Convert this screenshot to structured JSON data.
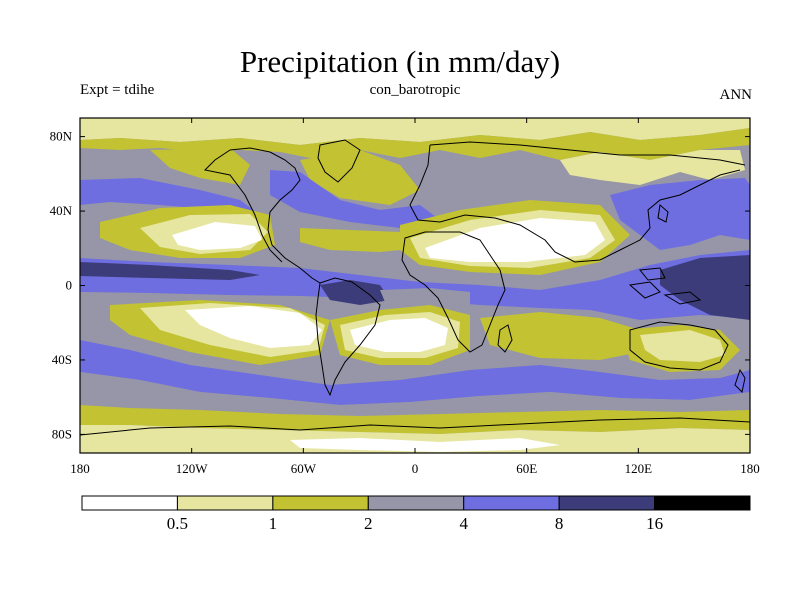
{
  "title": "Precipitation (in mm/day)",
  "left_subtitle": "Expt = tdihe",
  "center_subtitle": "con_barotropic",
  "right_subtitle": "ANN",
  "x_ticks": [
    "180",
    "120W",
    "60W",
    "0",
    "60E",
    "120E",
    "180"
  ],
  "y_ticks": [
    "80N",
    "40N",
    "0",
    "40S",
    "80S"
  ],
  "colorbar": {
    "labels": [
      "0.5",
      "1",
      "2",
      "4",
      "8",
      "16"
    ],
    "colors": [
      "#ffffff",
      "#e6e6a0",
      "#c2c232",
      "#9696a8",
      "#6e6ee0",
      "#3c3c7a",
      "#000000"
    ]
  },
  "colors": {
    "white": "#ffffff",
    "pale": "#e6e6a0",
    "olive": "#c2c232",
    "gray": "#9696a8",
    "blue": "#6e6ee0",
    "navy": "#3c3c7a",
    "coast": "#000000"
  }
}
